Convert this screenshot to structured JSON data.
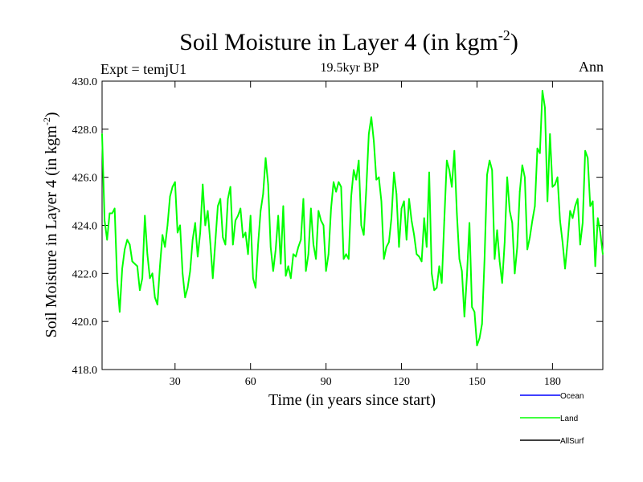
{
  "chart_data": {
    "type": "line",
    "title": "Soil Moisture in Layer 4 (in kgm",
    "title_sup": "-2",
    "title_close": ")",
    "subtitle": "19.5kyr BP",
    "left_label": "Expt = temjU1",
    "right_label": "Ann",
    "xlabel": "Time (in years since start)",
    "ylabel": "Soil Moisture in Layer 4 (in kgm",
    "ylabel_sup": "-2",
    "ylabel_close": ")",
    "xlim": [
      1,
      200
    ],
    "ylim": [
      418,
      430
    ],
    "x_ticks": [
      30,
      60,
      90,
      120,
      150,
      180
    ],
    "x_tick_labels": [
      "30",
      "60",
      "90",
      "120",
      "150",
      "180"
    ],
    "y_ticks": [
      418,
      420,
      422,
      424,
      426,
      428,
      430
    ],
    "y_tick_labels": [
      "418.0",
      "420.0",
      "422.0",
      "424.0",
      "426.0",
      "428.0",
      "430.0"
    ],
    "legend": [
      {
        "name": "Ocean",
        "color": "#0000ff"
      },
      {
        "name": "Land",
        "color": "#00ff00"
      },
      {
        "name": "AllSurf",
        "color": "#000000"
      }
    ],
    "series": [
      {
        "name": "Land",
        "color": "#00ff00",
        "x": [
          1,
          2,
          3,
          4,
          5,
          6,
          7,
          8,
          9,
          10,
          11,
          12,
          13,
          14,
          15,
          16,
          17,
          18,
          19,
          20,
          21,
          22,
          23,
          24,
          25,
          26,
          27,
          28,
          29,
          30,
          31,
          32,
          33,
          34,
          35,
          36,
          37,
          38,
          39,
          40,
          41,
          42,
          43,
          44,
          45,
          46,
          47,
          48,
          49,
          50,
          51,
          52,
          53,
          54,
          55,
          56,
          57,
          58,
          59,
          60,
          61,
          62,
          63,
          64,
          65,
          66,
          67,
          68,
          69,
          70,
          71,
          72,
          73,
          74,
          75,
          76,
          77,
          78,
          79,
          80,
          81,
          82,
          83,
          84,
          85,
          86,
          87,
          88,
          89,
          90,
          91,
          92,
          93,
          94,
          95,
          96,
          97,
          98,
          99,
          100,
          101,
          102,
          103,
          104,
          105,
          106,
          107,
          108,
          109,
          110,
          111,
          112,
          113,
          114,
          115,
          116,
          117,
          118,
          119,
          120,
          121,
          122,
          123,
          124,
          125,
          126,
          127,
          128,
          129,
          130,
          131,
          132,
          133,
          134,
          135,
          136,
          137,
          138,
          139,
          140,
          141,
          142,
          143,
          144,
          145,
          146,
          147,
          148,
          149,
          150,
          151,
          152,
          153,
          154,
          155,
          156,
          157,
          158,
          159,
          160,
          161,
          162,
          163,
          164,
          165,
          166,
          167,
          168,
          169,
          170,
          171,
          172,
          173,
          174,
          175,
          176,
          177,
          178,
          179,
          180,
          181,
          182,
          183,
          184,
          185,
          186,
          187,
          188,
          189,
          190,
          191,
          192,
          193,
          194,
          195,
          196,
          197,
          198,
          199,
          200
        ],
        "values": [
          427.8,
          424.2,
          423.4,
          424.5,
          424.5,
          424.7,
          421.7,
          420.4,
          422.2,
          423.0,
          423.4,
          423.2,
          422.5,
          422.4,
          422.3,
          421.3,
          421.8,
          424.4,
          422.8,
          421.8,
          422.0,
          421.0,
          420.7,
          422.3,
          423.6,
          423.1,
          424.0,
          425.2,
          425.6,
          425.8,
          423.7,
          424.0,
          422.0,
          421.0,
          421.4,
          422.1,
          423.4,
          424.1,
          422.7,
          423.7,
          425.7,
          424.0,
          424.6,
          423.3,
          421.8,
          423.3,
          424.8,
          425.1,
          423.5,
          423.2,
          425.1,
          425.6,
          423.2,
          424.2,
          424.4,
          424.7,
          423.5,
          423.7,
          422.8,
          424.4,
          421.8,
          421.4,
          423.2,
          424.6,
          425.3,
          426.8,
          425.7,
          423.1,
          422.1,
          423.0,
          424.4,
          422.4,
          424.8,
          421.9,
          422.3,
          421.8,
          422.8,
          422.7,
          423.1,
          423.4,
          425.1,
          422.1,
          422.8,
          424.7,
          423.2,
          422.6,
          424.6,
          424.2,
          424.0,
          422.1,
          422.8,
          424.7,
          425.8,
          425.4,
          425.8,
          425.6,
          422.6,
          422.8,
          422.6,
          425.2,
          426.3,
          425.9,
          426.7,
          424.0,
          423.6,
          425.5,
          427.8,
          428.5,
          427.5,
          425.9,
          426.0,
          425.0,
          422.6,
          423.1,
          423.3,
          424.3,
          426.2,
          425.3,
          423.1,
          424.7,
          425.0,
          423.4,
          425.1,
          424.2,
          423.6,
          422.8,
          422.7,
          422.5,
          424.3,
          423.1,
          426.2,
          422.0,
          421.3,
          421.4,
          422.3,
          421.6,
          424.2,
          426.7,
          426.3,
          425.6,
          427.1,
          424.5,
          422.6,
          422.1,
          420.2,
          421.9,
          424.1,
          420.6,
          420.4,
          419.0,
          419.3,
          419.9,
          422.6,
          426.1,
          426.7,
          426.3,
          422.6,
          423.8,
          422.5,
          421.6,
          423.3,
          426.0,
          424.6,
          424.1,
          422.0,
          423.1,
          425.4,
          426.5,
          426.0,
          423.0,
          423.5,
          424.2,
          424.8,
          427.2,
          427.0,
          429.6,
          428.9,
          425.0,
          427.8,
          425.6,
          425.7,
          426.0,
          424.2,
          423.3,
          422.2,
          423.3,
          424.6,
          424.3,
          424.8,
          425.1,
          423.2,
          424.1,
          427.1,
          426.8,
          424.8,
          425.0,
          422.3,
          424.3,
          423.7,
          422.8
        ]
      }
    ]
  }
}
